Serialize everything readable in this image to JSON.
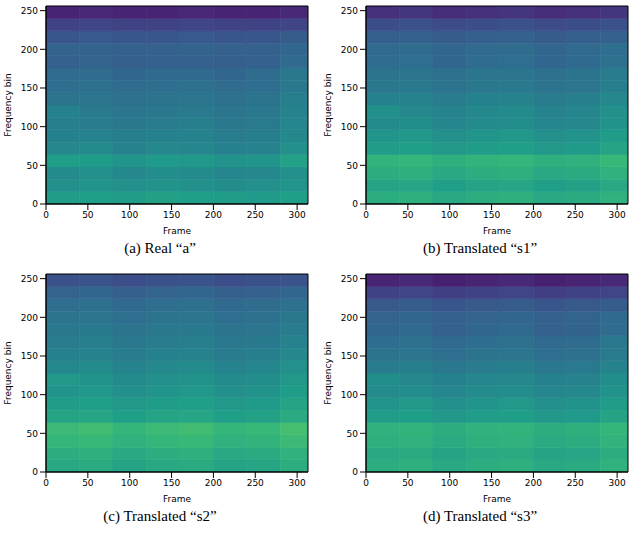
{
  "chart_data": [
    {
      "type": "heatmap",
      "title": "(a) Real “a”",
      "x_label": "Frame",
      "y_label": "Frequency bin",
      "xlim": [
        0,
        313
      ],
      "ylim": [
        0,
        256
      ],
      "xticks": [
        0,
        50,
        100,
        150,
        200,
        250,
        300
      ],
      "yticks": [
        0,
        50,
        100,
        150,
        200,
        250
      ],
      "x_edges": [
        0,
        40,
        80,
        120,
        160,
        200,
        240,
        280,
        313
      ],
      "y_edges": [
        0,
        16,
        32,
        48,
        64,
        80,
        96,
        112,
        128,
        144,
        160,
        176,
        192,
        208,
        224,
        240,
        256
      ],
      "zlim": [
        0,
        1
      ],
      "color": "viridis",
      "cells": [
        [
          0.55,
          0.56,
          0.55,
          0.57,
          0.56,
          0.55,
          0.54,
          0.56
        ],
        [
          0.5,
          0.52,
          0.5,
          0.51,
          0.5,
          0.49,
          0.5,
          0.52
        ],
        [
          0.48,
          0.5,
          0.47,
          0.49,
          0.48,
          0.46,
          0.47,
          0.5
        ],
        [
          0.56,
          0.55,
          0.52,
          0.54,
          0.53,
          0.51,
          0.52,
          0.57
        ],
        [
          0.47,
          0.48,
          0.45,
          0.47,
          0.46,
          0.44,
          0.45,
          0.5
        ],
        [
          0.44,
          0.45,
          0.43,
          0.44,
          0.45,
          0.42,
          0.43,
          0.47
        ],
        [
          0.43,
          0.42,
          0.4,
          0.42,
          0.43,
          0.4,
          0.41,
          0.46
        ],
        [
          0.44,
          0.41,
          0.39,
          0.4,
          0.41,
          0.39,
          0.4,
          0.45
        ],
        [
          0.38,
          0.39,
          0.37,
          0.38,
          0.39,
          0.37,
          0.38,
          0.43
        ],
        [
          0.36,
          0.37,
          0.35,
          0.36,
          0.37,
          0.35,
          0.36,
          0.4
        ],
        [
          0.35,
          0.35,
          0.33,
          0.34,
          0.34,
          0.33,
          0.35,
          0.4
        ],
        [
          0.31,
          0.32,
          0.3,
          0.31,
          0.31,
          0.3,
          0.31,
          0.34
        ],
        [
          0.32,
          0.32,
          0.31,
          0.31,
          0.32,
          0.31,
          0.31,
          0.33
        ],
        [
          0.27,
          0.28,
          0.27,
          0.27,
          0.28,
          0.27,
          0.27,
          0.29
        ],
        [
          0.2,
          0.21,
          0.2,
          0.2,
          0.21,
          0.2,
          0.2,
          0.21
        ],
        [
          0.1,
          0.11,
          0.1,
          0.1,
          0.11,
          0.1,
          0.1,
          0.11
        ]
      ]
    },
    {
      "type": "heatmap",
      "title": "(b) Translated “s1”",
      "x_label": "Frame",
      "y_label": "Frequency bin",
      "xlim": [
        0,
        313
      ],
      "ylim": [
        0,
        256
      ],
      "xticks": [
        0,
        50,
        100,
        150,
        200,
        250,
        300
      ],
      "yticks": [
        0,
        50,
        100,
        150,
        200,
        250
      ],
      "x_edges": [
        0,
        40,
        80,
        120,
        160,
        200,
        240,
        280,
        313
      ],
      "y_edges": [
        0,
        16,
        32,
        48,
        64,
        80,
        96,
        112,
        128,
        144,
        160,
        176,
        192,
        208,
        224,
        240,
        256
      ],
      "zlim": [
        0,
        1
      ],
      "color": "viridis",
      "cells": [
        [
          0.62,
          0.63,
          0.6,
          0.62,
          0.63,
          0.6,
          0.61,
          0.64
        ],
        [
          0.58,
          0.59,
          0.56,
          0.58,
          0.59,
          0.56,
          0.57,
          0.6
        ],
        [
          0.62,
          0.63,
          0.6,
          0.62,
          0.63,
          0.6,
          0.61,
          0.64
        ],
        [
          0.65,
          0.66,
          0.63,
          0.65,
          0.66,
          0.63,
          0.64,
          0.67
        ],
        [
          0.55,
          0.56,
          0.53,
          0.55,
          0.56,
          0.53,
          0.54,
          0.58
        ],
        [
          0.52,
          0.53,
          0.5,
          0.52,
          0.53,
          0.5,
          0.51,
          0.55
        ],
        [
          0.48,
          0.49,
          0.46,
          0.48,
          0.49,
          0.46,
          0.47,
          0.51
        ],
        [
          0.5,
          0.47,
          0.45,
          0.47,
          0.48,
          0.45,
          0.46,
          0.5
        ],
        [
          0.44,
          0.45,
          0.42,
          0.44,
          0.45,
          0.42,
          0.43,
          0.47
        ],
        [
          0.4,
          0.41,
          0.38,
          0.4,
          0.41,
          0.38,
          0.39,
          0.43
        ],
        [
          0.38,
          0.39,
          0.37,
          0.39,
          0.39,
          0.37,
          0.38,
          0.42
        ],
        [
          0.35,
          0.36,
          0.33,
          0.35,
          0.36,
          0.33,
          0.34,
          0.37
        ],
        [
          0.34,
          0.35,
          0.33,
          0.34,
          0.35,
          0.33,
          0.34,
          0.36
        ],
        [
          0.3,
          0.31,
          0.29,
          0.3,
          0.31,
          0.29,
          0.3,
          0.31
        ],
        [
          0.24,
          0.25,
          0.23,
          0.24,
          0.25,
          0.23,
          0.24,
          0.25
        ],
        [
          0.14,
          0.15,
          0.13,
          0.14,
          0.15,
          0.13,
          0.14,
          0.15
        ]
      ]
    },
    {
      "type": "heatmap",
      "title": "(c) Translated “s2”",
      "x_label": "Frame",
      "y_label": "Frequency bin",
      "xlim": [
        0,
        313
      ],
      "ylim": [
        0,
        256
      ],
      "xticks": [
        0,
        50,
        100,
        150,
        200,
        250,
        300
      ],
      "yticks": [
        0,
        50,
        100,
        150,
        200,
        250
      ],
      "x_edges": [
        0,
        40,
        80,
        120,
        160,
        200,
        240,
        280,
        313
      ],
      "y_edges": [
        0,
        16,
        32,
        48,
        64,
        80,
        96,
        112,
        128,
        144,
        160,
        176,
        192,
        208,
        224,
        240,
        256
      ],
      "zlim": [
        0,
        1
      ],
      "color": "viridis",
      "cells": [
        [
          0.6,
          0.61,
          0.58,
          0.6,
          0.61,
          0.58,
          0.59,
          0.62
        ],
        [
          0.62,
          0.63,
          0.6,
          0.62,
          0.63,
          0.6,
          0.61,
          0.64
        ],
        [
          0.66,
          0.67,
          0.64,
          0.66,
          0.67,
          0.64,
          0.65,
          0.68
        ],
        [
          0.68,
          0.69,
          0.66,
          0.68,
          0.69,
          0.66,
          0.67,
          0.7
        ],
        [
          0.58,
          0.59,
          0.56,
          0.58,
          0.59,
          0.56,
          0.57,
          0.61
        ],
        [
          0.55,
          0.56,
          0.53,
          0.55,
          0.56,
          0.53,
          0.54,
          0.58
        ],
        [
          0.52,
          0.53,
          0.5,
          0.52,
          0.53,
          0.5,
          0.51,
          0.55
        ],
        [
          0.53,
          0.51,
          0.48,
          0.5,
          0.51,
          0.48,
          0.49,
          0.53
        ],
        [
          0.47,
          0.48,
          0.45,
          0.47,
          0.48,
          0.45,
          0.46,
          0.5
        ],
        [
          0.44,
          0.45,
          0.42,
          0.44,
          0.45,
          0.42,
          0.43,
          0.47
        ],
        [
          0.42,
          0.43,
          0.4,
          0.42,
          0.43,
          0.4,
          0.41,
          0.45
        ],
        [
          0.4,
          0.41,
          0.38,
          0.4,
          0.41,
          0.38,
          0.39,
          0.42
        ],
        [
          0.38,
          0.39,
          0.36,
          0.38,
          0.39,
          0.36,
          0.37,
          0.4
        ],
        [
          0.36,
          0.37,
          0.34,
          0.36,
          0.37,
          0.34,
          0.35,
          0.37
        ],
        [
          0.32,
          0.33,
          0.3,
          0.32,
          0.33,
          0.3,
          0.31,
          0.33
        ],
        [
          0.25,
          0.26,
          0.24,
          0.25,
          0.26,
          0.24,
          0.25,
          0.26
        ]
      ]
    },
    {
      "type": "heatmap",
      "title": "(d) Translated “s3”",
      "x_label": "Frame",
      "y_label": "Frequency bin",
      "xlim": [
        0,
        313
      ],
      "ylim": [
        0,
        256
      ],
      "xticks": [
        0,
        50,
        100,
        150,
        200,
        250,
        300
      ],
      "yticks": [
        0,
        50,
        100,
        150,
        200,
        250
      ],
      "x_edges": [
        0,
        40,
        80,
        120,
        160,
        200,
        240,
        280,
        313
      ],
      "y_edges": [
        0,
        16,
        32,
        48,
        64,
        80,
        96,
        112,
        128,
        144,
        160,
        176,
        192,
        208,
        224,
        240,
        256
      ],
      "zlim": [
        0,
        1
      ],
      "color": "viridis",
      "cells": [
        [
          0.62,
          0.63,
          0.6,
          0.62,
          0.63,
          0.6,
          0.61,
          0.64
        ],
        [
          0.6,
          0.61,
          0.58,
          0.6,
          0.61,
          0.58,
          0.59,
          0.62
        ],
        [
          0.63,
          0.64,
          0.61,
          0.63,
          0.64,
          0.61,
          0.62,
          0.65
        ],
        [
          0.64,
          0.65,
          0.62,
          0.64,
          0.65,
          0.62,
          0.63,
          0.66
        ],
        [
          0.55,
          0.56,
          0.53,
          0.55,
          0.56,
          0.53,
          0.54,
          0.58
        ],
        [
          0.52,
          0.53,
          0.5,
          0.52,
          0.53,
          0.5,
          0.51,
          0.55
        ],
        [
          0.48,
          0.49,
          0.46,
          0.48,
          0.49,
          0.46,
          0.47,
          0.51
        ],
        [
          0.49,
          0.47,
          0.44,
          0.46,
          0.47,
          0.44,
          0.45,
          0.49
        ],
        [
          0.42,
          0.43,
          0.4,
          0.42,
          0.43,
          0.4,
          0.41,
          0.45
        ],
        [
          0.38,
          0.39,
          0.36,
          0.38,
          0.39,
          0.36,
          0.37,
          0.41
        ],
        [
          0.36,
          0.37,
          0.34,
          0.36,
          0.37,
          0.34,
          0.35,
          0.4
        ],
        [
          0.33,
          0.34,
          0.31,
          0.33,
          0.34,
          0.31,
          0.32,
          0.35
        ],
        [
          0.32,
          0.33,
          0.31,
          0.32,
          0.33,
          0.31,
          0.32,
          0.34
        ],
        [
          0.28,
          0.29,
          0.27,
          0.28,
          0.29,
          0.27,
          0.28,
          0.29
        ],
        [
          0.2,
          0.21,
          0.19,
          0.2,
          0.21,
          0.19,
          0.2,
          0.21
        ],
        [
          0.1,
          0.11,
          0.09,
          0.1,
          0.11,
          0.09,
          0.1,
          0.11
        ]
      ]
    }
  ]
}
